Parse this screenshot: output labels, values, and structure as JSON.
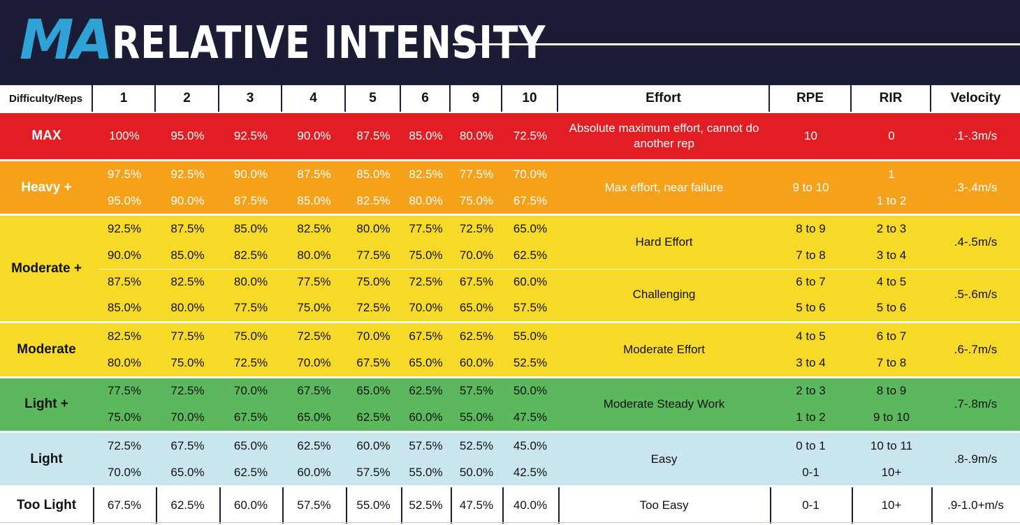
{
  "header": {
    "logo": "MA",
    "title": "RELATIVE INTENSITY"
  },
  "columns": [
    "Difficulty/Reps",
    "1",
    "2",
    "3",
    "4",
    "5",
    "6",
    "9",
    "10",
    "Effort",
    "RPE",
    "RIR",
    "Velocity"
  ],
  "bands": [
    {
      "label": "MAX",
      "color": "#e21e24",
      "text_color": "#ffffff",
      "rows": [
        {
          "values": [
            "100%",
            "95.0%",
            "92.5%",
            "90.0%",
            "87.5%",
            "85.0%",
            "80.0%",
            "72.5%"
          ],
          "rpe": "10",
          "rir": "0"
        }
      ],
      "effort_groups": [
        {
          "effort": "Absolute maximum effort, cannot do another rep"
        }
      ],
      "velocity": ".1-.3m/s"
    },
    {
      "label": "Heavy +",
      "color": "#f5a11a",
      "text_color": "#ffffff",
      "rows": [
        {
          "values": [
            "97.5%",
            "92.5%",
            "90.0%",
            "87.5%",
            "85.0%",
            "82.5%",
            "77.5%",
            "70.0%"
          ],
          "rpe": "",
          "rir": "1"
        },
        {
          "values": [
            "95.0%",
            "90.0%",
            "87.5%",
            "85.0%",
            "82.5%",
            "80.0%",
            "75.0%",
            "67.5%"
          ],
          "rpe": "",
          "rir": "1 to 2"
        }
      ],
      "effort_groups": [
        {
          "effort": "Max effort, near failure"
        }
      ],
      "rpe_merged": "9 to 10",
      "velocity": ".3-.4m/s"
    },
    {
      "label": "Moderate +",
      "color": "#f7d927",
      "text_color": "#111111",
      "rows": [
        {
          "values": [
            "92.5%",
            "87.5%",
            "85.0%",
            "82.5%",
            "80.0%",
            "77.5%",
            "72.5%",
            "65.0%"
          ],
          "rpe": "8 to 9",
          "rir": "2 to 3"
        },
        {
          "values": [
            "90.0%",
            "85.0%",
            "82.5%",
            "80.0%",
            "77.5%",
            "75.0%",
            "70.0%",
            "62.5%"
          ],
          "rpe": "7 to 8",
          "rir": "3 to 4"
        },
        {
          "values": [
            "87.5%",
            "82.5%",
            "80.0%",
            "77.5%",
            "75.0%",
            "72.5%",
            "67.5%",
            "60.0%"
          ],
          "rpe": "6 to 7",
          "rir": "4 to 5"
        },
        {
          "values": [
            "85.0%",
            "80.0%",
            "77.5%",
            "75.0%",
            "72.5%",
            "70.0%",
            "65.0%",
            "57.5%"
          ],
          "rpe": "5 to 6",
          "rir": "5 to 6"
        }
      ],
      "effort_groups": [
        {
          "effort": "Hard Effort",
          "velocity": ".4-.5m/s"
        },
        {
          "effort": "Challenging",
          "velocity": ".5-.6m/s"
        }
      ]
    },
    {
      "label": "Moderate",
      "color": "#f7d927",
      "text_color": "#111111",
      "rows": [
        {
          "values": [
            "82.5%",
            "77.5%",
            "75.0%",
            "72.5%",
            "70.0%",
            "67.5%",
            "62.5%",
            "55.0%"
          ],
          "rpe": "4 to 5",
          "rir": "6 to 7"
        },
        {
          "values": [
            "80.0%",
            "75.0%",
            "72.5%",
            "70.0%",
            "67.5%",
            "65.0%",
            "60.0%",
            "52.5%"
          ],
          "rpe": "3 to 4",
          "rir": "7 to 8"
        }
      ],
      "effort_groups": [
        {
          "effort": "Moderate Effort"
        }
      ],
      "velocity": ".6-.7m/s"
    },
    {
      "label": "Light +",
      "color": "#5cb85c",
      "text_color": "#111111",
      "rows": [
        {
          "values": [
            "77.5%",
            "72.5%",
            "70.0%",
            "67.5%",
            "65.0%",
            "62.5%",
            "57.5%",
            "50.0%"
          ],
          "rpe": "2 to 3",
          "rir": "8 to 9"
        },
        {
          "values": [
            "75.0%",
            "70.0%",
            "67.5%",
            "65.0%",
            "62.5%",
            "60.0%",
            "55.0%",
            "47.5%"
          ],
          "rpe": "1 to 2",
          "rir": "9 to 10"
        }
      ],
      "effort_groups": [
        {
          "effort": "Moderate Steady Work"
        }
      ],
      "velocity": ".7-.8m/s"
    },
    {
      "label": "Light",
      "color": "#c9e6ee",
      "text_color": "#111111",
      "rows": [
        {
          "values": [
            "72.5%",
            "67.5%",
            "65.0%",
            "62.5%",
            "60.0%",
            "57.5%",
            "52.5%",
            "45.0%"
          ],
          "rpe": "0 to 1",
          "rir": "10 to 11"
        },
        {
          "values": [
            "70.0%",
            "65.0%",
            "62.5%",
            "60.0%",
            "57.5%",
            "55.0%",
            "50.0%",
            "42.5%"
          ],
          "rpe": "0-1",
          "rir": "10+"
        }
      ],
      "effort_groups": [
        {
          "effort": "Easy"
        }
      ],
      "velocity": ".8-.9m/s"
    },
    {
      "label": "Too Light",
      "color": "#ffffff",
      "text_color": "#111111",
      "rows": [
        {
          "values": [
            "67.5%",
            "62.5%",
            "60.0%",
            "57.5%",
            "55.0%",
            "52.5%",
            "47.5%",
            "40.0%"
          ],
          "rpe": "0-1",
          "rir": "10+"
        }
      ],
      "effort_groups": [
        {
          "effort": "Too Easy"
        }
      ],
      "velocity": ".9-1.0+m/s"
    }
  ]
}
